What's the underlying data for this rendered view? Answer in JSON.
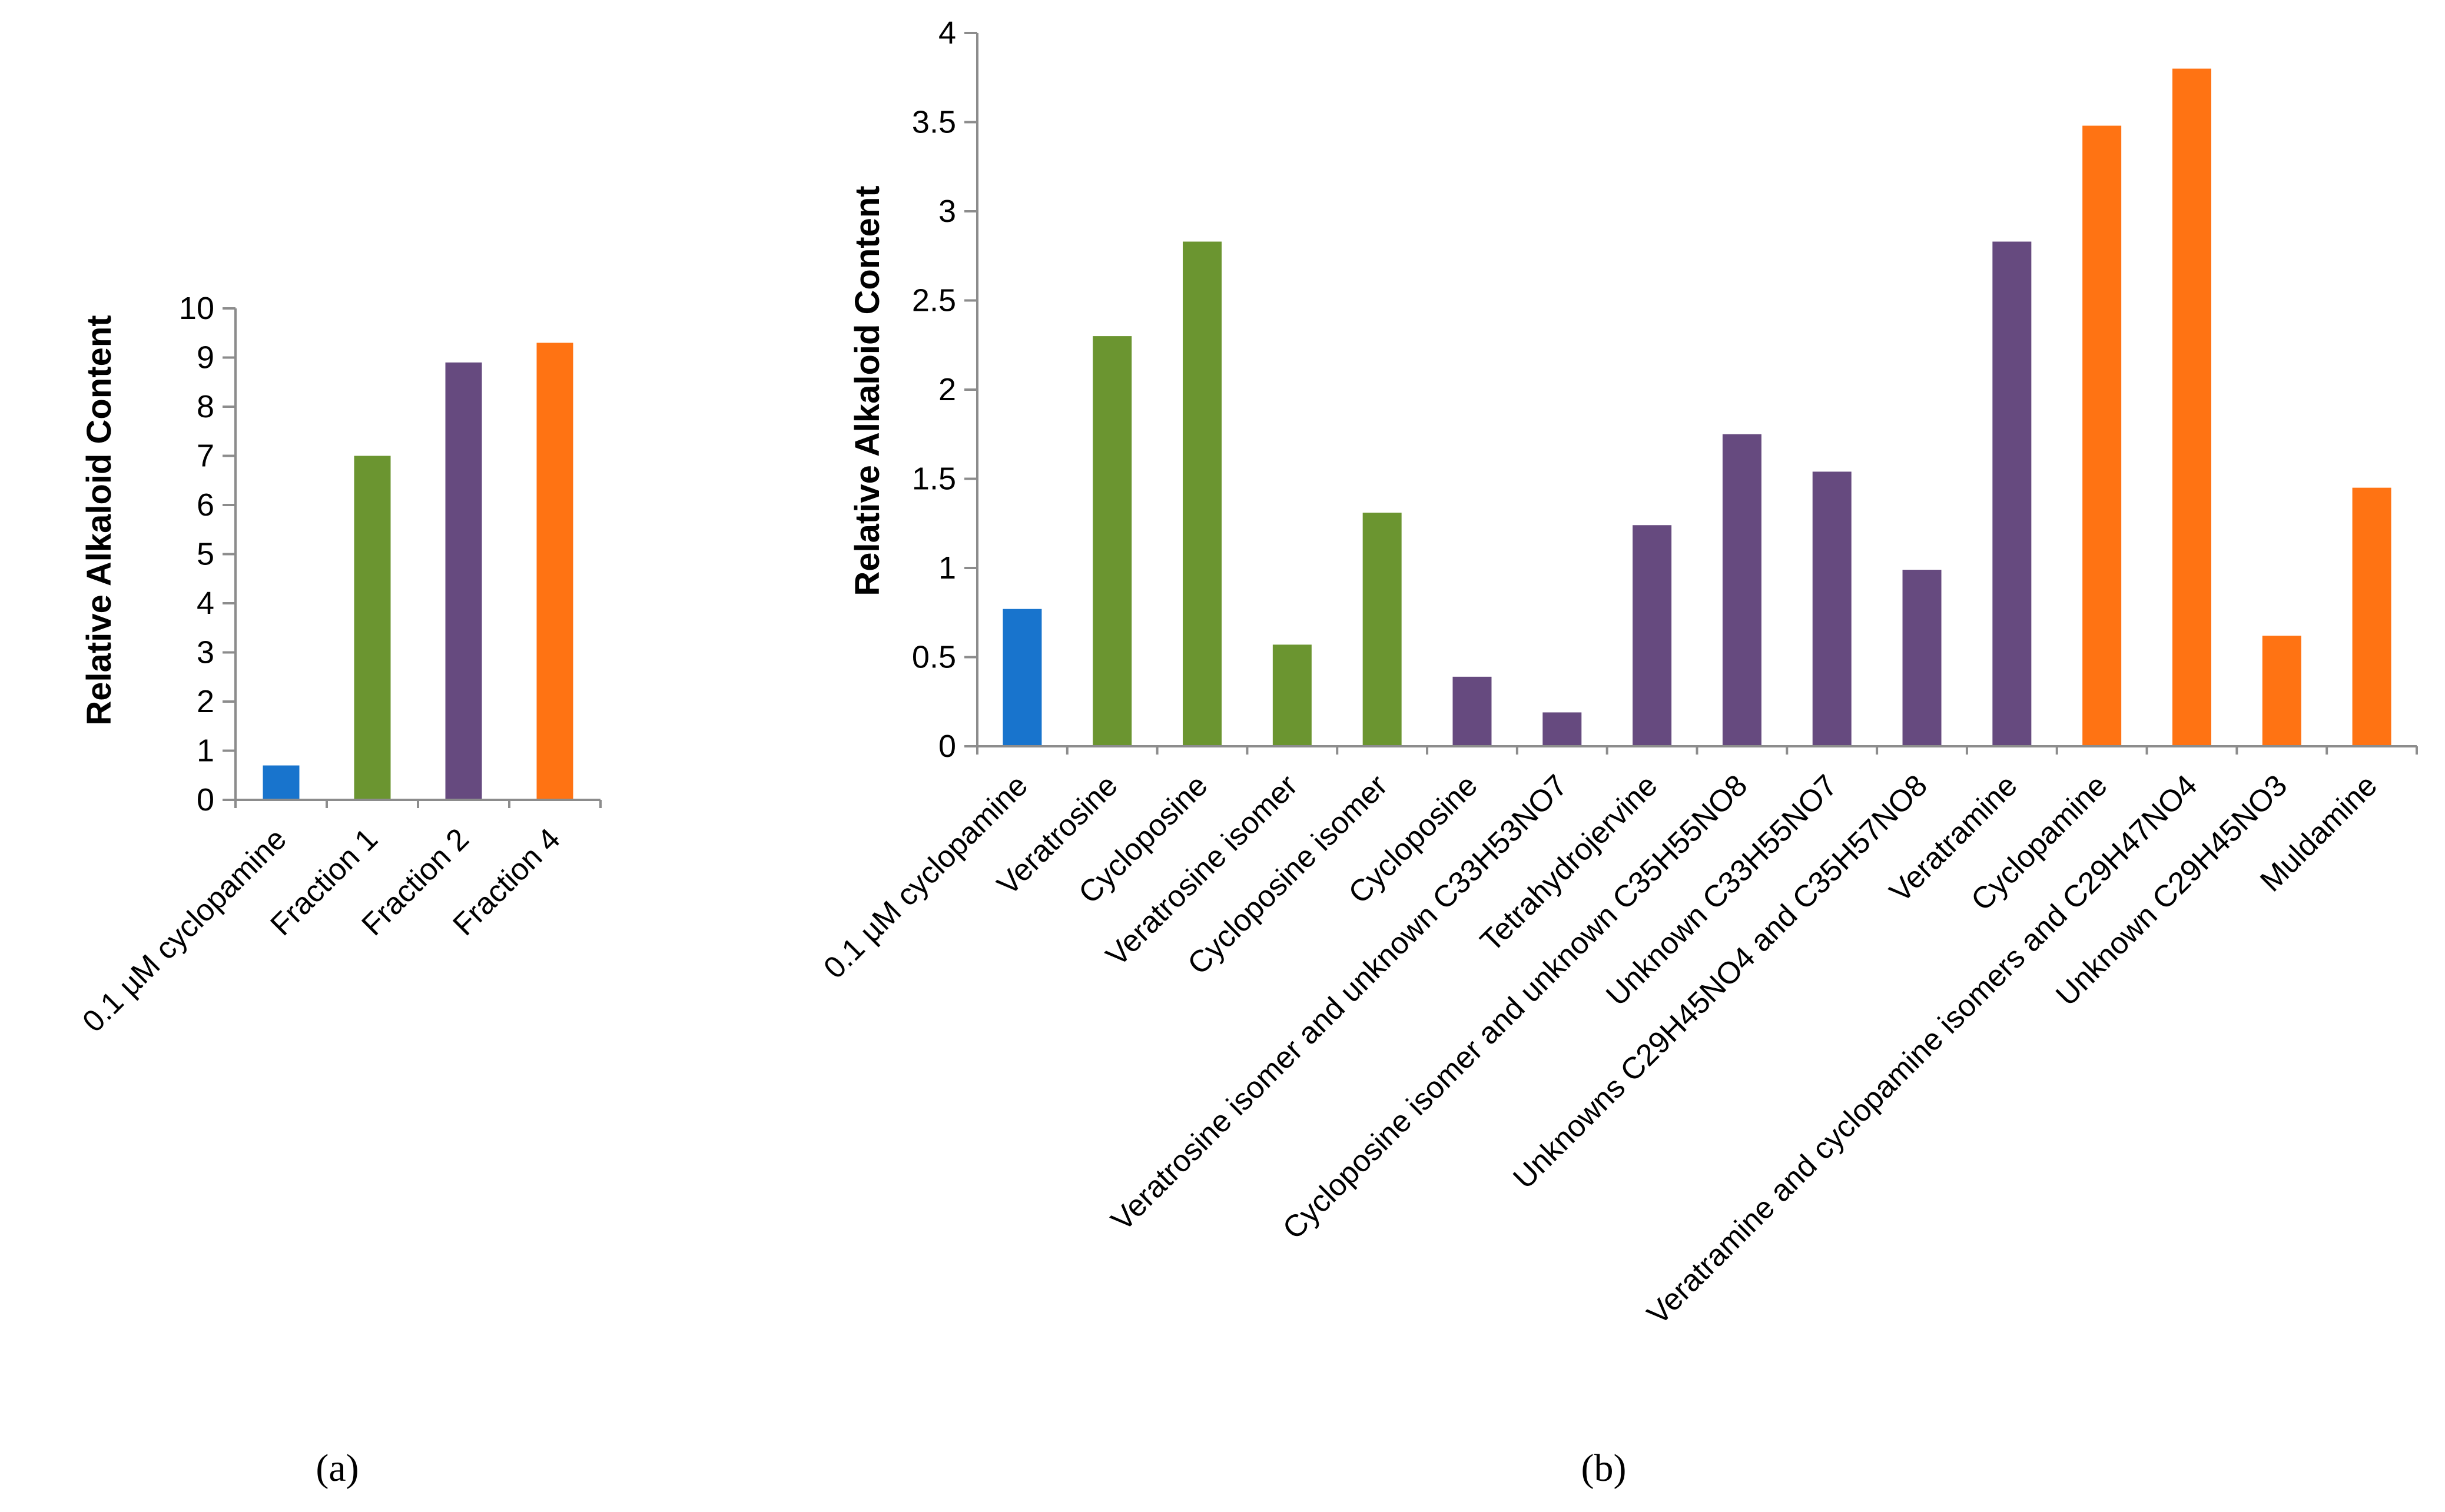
{
  "colors": {
    "blue": "#1874CD",
    "green": "#6B9530",
    "purple": "#664A7F",
    "orange": "#FF7313",
    "axis": "#8C8C8C"
  },
  "chart_data": [
    {
      "id": "a",
      "type": "bar",
      "panel_label": "(a)",
      "ylabel": "Relative Alkaloid Content",
      "xlabel": "",
      "ylim": [
        0,
        10
      ],
      "yticks": [
        "0",
        "1",
        "2",
        "3",
        "4",
        "5",
        "6",
        "7",
        "8",
        "9",
        "10"
      ],
      "categories": [
        "0.1 µM cyclopamine",
        "Fraction 1",
        "Fraction 2",
        "Fraction 4"
      ],
      "values": [
        0.7,
        7.0,
        8.9,
        9.3
      ],
      "bar_colors": [
        "blue",
        "green",
        "purple",
        "orange"
      ],
      "grid": false
    },
    {
      "id": "b",
      "type": "bar",
      "panel_label": "(b)",
      "ylabel": "Relative Alkaloid Content",
      "xlabel": "",
      "ylim": [
        0,
        4
      ],
      "yticks": [
        "0",
        "0.5",
        "1",
        "1.5",
        "2",
        "2.5",
        "3",
        "3.5",
        "4"
      ],
      "categories": [
        "0.1 µM cyclopamine",
        "Veratrosine",
        "Cycloposine",
        "Veratrosine isomer",
        "Cycloposine isomer",
        "Cycloposine",
        "Veratrosine isomer and unknown C33H53NO7",
        "Tetrahydrojervine",
        "Cycloposine isomer and unknown C35H55NO8",
        "Unknown C33H55NO7",
        "Unknowns C29H45NO4 and C35H57NO8",
        "Veratramine",
        "Cyclopamine",
        "Veratramine and cyclopamine isomers and  C29H47NO4",
        "Unknown C29H45NO3",
        "Muldamine"
      ],
      "values": [
        0.77,
        2.3,
        2.83,
        0.57,
        1.31,
        0.39,
        0.19,
        1.24,
        1.75,
        1.54,
        0.99,
        2.83,
        3.48,
        3.8,
        0.62,
        1.45
      ],
      "bar_colors": [
        "blue",
        "green",
        "green",
        "green",
        "green",
        "purple",
        "purple",
        "purple",
        "purple",
        "purple",
        "purple",
        "purple",
        "orange",
        "orange",
        "orange",
        "orange"
      ],
      "grid": false
    }
  ]
}
